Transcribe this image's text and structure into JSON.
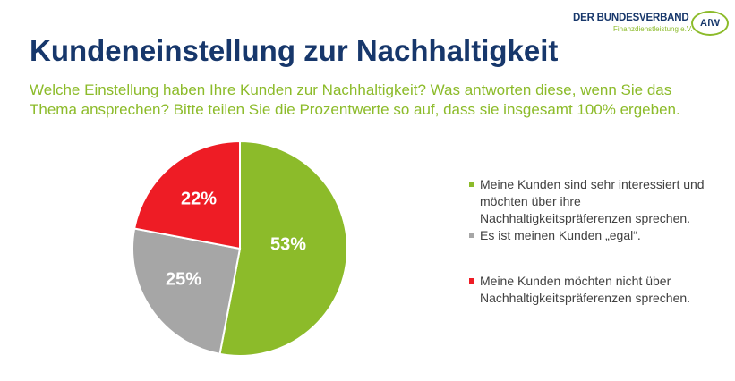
{
  "logo": {
    "line1": "DER BUNDESVERBAND",
    "line2": "Finanzdienstleistung e.V.",
    "badge": "AfW"
  },
  "title": "Kundeneinstellung zur Nachhaltigkeit",
  "subtitle": "Welche Einstellung haben Ihre Kunden zur Nachhaltigkeit? Was antworten diese, wenn Sie das Thema ansprechen? Bitte teilen Sie die Prozentwerte so auf, dass sie insgesamt 100% ergeben.",
  "chart_data": {
    "type": "pie",
    "title": "",
    "legend_position": "right",
    "series": [
      {
        "name": "Meine Kunden sind sehr interessiert und möchten über ihre Nachhaltigkeitspräferenzen sprechen.",
        "value": 53,
        "label": "53%",
        "color": "#8cbb2a"
      },
      {
        "name": "Es ist meinen Kunden „egal“.",
        "value": 25,
        "label": "25%",
        "color": "#a6a6a6"
      },
      {
        "name": "Meine Kunden möchten nicht über Nachhaltigkeitspräferenzen sprechen.",
        "value": 22,
        "label": "22%",
        "color": "#ee1c25"
      }
    ]
  }
}
